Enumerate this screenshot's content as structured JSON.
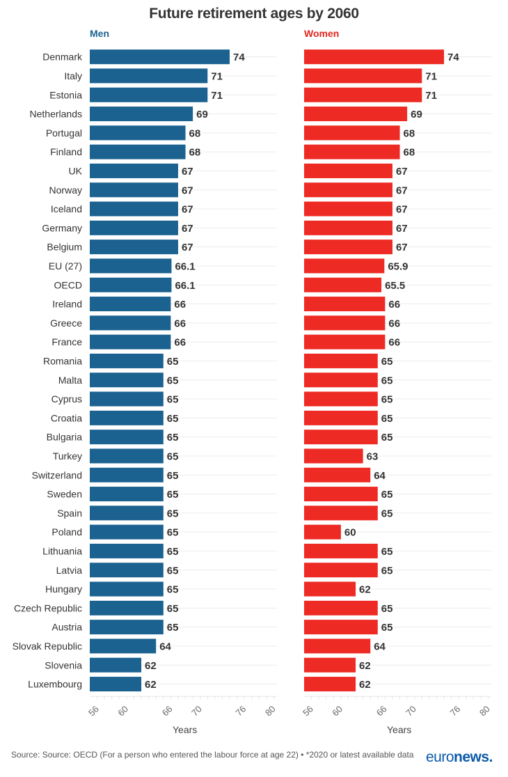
{
  "chart_data": [
    {
      "type": "bar",
      "orientation": "horizontal",
      "title": "Future retirement ages by 2060",
      "subtitle": "Men",
      "xlabel": "Years",
      "ylabel": "",
      "xlim": [
        55,
        81
      ],
      "xticks": [
        56,
        60,
        66,
        70,
        76,
        80
      ],
      "grid": true,
      "color": "#1b6290",
      "categories": [
        "Denmark",
        "Italy",
        "Estonia",
        "Netherlands",
        "Portugal",
        "Finland",
        "UK",
        "Norway",
        "Iceland",
        "Germany",
        "Belgium",
        "EU (27)",
        "OECD",
        "Ireland",
        "Greece",
        "France",
        "Romania",
        "Malta",
        "Cyprus",
        "Croatia",
        "Bulgaria",
        "Turkey",
        "Switzerland",
        "Sweden",
        "Spain",
        "Poland",
        "Lithuania",
        "Latvia",
        "Hungary",
        "Czech Republic",
        "Austria",
        "Slovak Republic",
        "Slovenia",
        "Luxembourg"
      ],
      "values": [
        74,
        71,
        71,
        69,
        68,
        68,
        67,
        67,
        67,
        67,
        67,
        66.1,
        66.1,
        66,
        66,
        66,
        65,
        65,
        65,
        65,
        65,
        65,
        65,
        65,
        65,
        65,
        65,
        65,
        65,
        65,
        65,
        64,
        62,
        62
      ],
      "labels": [
        "74",
        "71",
        "71",
        "69",
        "68",
        "68",
        "67",
        "67",
        "67",
        "67",
        "67",
        "66.1",
        "66.1",
        "66",
        "66",
        "66",
        "65",
        "65",
        "65",
        "65",
        "65",
        "65",
        "65",
        "65",
        "65",
        "65",
        "65",
        "65",
        "65",
        "65",
        "65",
        "64",
        "62",
        "62"
      ]
    },
    {
      "type": "bar",
      "orientation": "horizontal",
      "title": "Future retirement ages by 2060",
      "subtitle": "Women",
      "xlabel": "Years",
      "ylabel": "",
      "xlim": [
        55,
        81
      ],
      "xticks": [
        56,
        60,
        66,
        70,
        76,
        80
      ],
      "grid": true,
      "color": "#ee2a24",
      "categories": [
        "Denmark",
        "Italy",
        "Estonia",
        "Netherlands",
        "Portugal",
        "Finland",
        "UK",
        "Norway",
        "Iceland",
        "Germany",
        "Belgium",
        "EU (27)",
        "OECD",
        "Ireland",
        "Greece",
        "France",
        "Romania",
        "Malta",
        "Cyprus",
        "Croatia",
        "Bulgaria",
        "Turkey",
        "Switzerland",
        "Sweden",
        "Spain",
        "Poland",
        "Lithuania",
        "Latvia",
        "Hungary",
        "Czech Republic",
        "Austria",
        "Slovak Republic",
        "Slovenia",
        "Luxembourg"
      ],
      "values": [
        74,
        71,
        71,
        69,
        68,
        68,
        67,
        67,
        67,
        67,
        67,
        65.9,
        65.5,
        66,
        66,
        66,
        65,
        65,
        65,
        65,
        65,
        63,
        64,
        65,
        65,
        60,
        65,
        65,
        62,
        65,
        65,
        64,
        62,
        62
      ],
      "labels": [
        "74",
        "71",
        "71",
        "69",
        "68",
        "68",
        "67",
        "67",
        "67",
        "67",
        "67",
        "65.9",
        "65.5",
        "66",
        "66",
        "66",
        "65",
        "65",
        "65",
        "65",
        "65",
        "63",
        "64",
        "65",
        "65",
        "60",
        "65",
        "65",
        "62",
        "65",
        "65",
        "64",
        "62",
        "62"
      ]
    }
  ],
  "title": "Future retirement ages by 2060",
  "men_label": "Men",
  "women_label": "Women",
  "men_color": "#1b6290",
  "women_color": "#ee2a24",
  "xaxis_title": "Years",
  "source": "Source: Source: OECD (For a person who entered the labour force at age 22) • *2020 or latest available data",
  "logo": {
    "light": "euro",
    "bold": "news",
    "dot": "."
  }
}
